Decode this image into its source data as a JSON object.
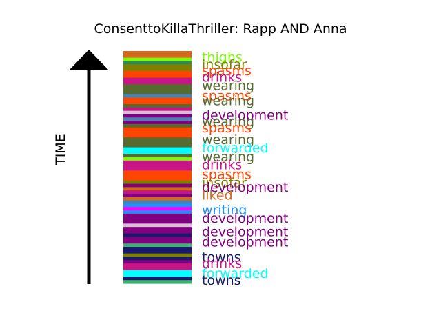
{
  "chart_data": {
    "type": "timeline-strip",
    "title": "ConsenttoKillaThriller: Rapp AND Anna",
    "ylabel": "TIME",
    "colors": {
      "thighs": "#7cfc00",
      "insofar": "#808000",
      "spasms": "#ff4500",
      "drinks": "#c71585",
      "wearing": "#556b2f",
      "development": "#800080",
      "forwarded": "#00ffff",
      "liked": "#d2691e",
      "writing": "#1e90ff",
      "towns": "#191970",
      "misc1": "#4682b4",
      "misc2": "#2e8b57",
      "misc3": "#3cb371",
      "misc4": "#ff00ff",
      "misc5": "#d8bfd8"
    },
    "bands": [
      "liked",
      "liked",
      "thighs",
      "misc2",
      "insofar",
      "insofar",
      "spasms",
      "spasms",
      "drinks",
      "drinks",
      "wearing",
      "wearing",
      "wearing",
      "misc1",
      "spasms",
      "spasms",
      "wearing",
      "drinks",
      "misc5",
      "development",
      "misc1",
      "development",
      "wearing",
      "spasms",
      "spasms",
      "spasms",
      "wearing",
      "wearing",
      "wearing",
      "forwarded",
      "forwarded",
      "wearing",
      "thighs",
      "drinks",
      "drinks",
      "drinks",
      "spasms",
      "spasms",
      "spasms",
      "insofar",
      "development",
      "liked",
      "drinks",
      "development",
      "liked",
      "misc1",
      "writing",
      "misc4",
      "writing",
      "development",
      "development",
      "development",
      "misc5",
      "development",
      "development",
      "towns",
      "development",
      "development",
      "misc3",
      "towns",
      "towns",
      "insofar",
      "towns",
      "development",
      "drinks",
      "drinks",
      "forwarded",
      "forwarded",
      "towns",
      "misc3"
    ],
    "labels": [
      {
        "text": "thighs",
        "key": "thighs",
        "pos": 0.025
      },
      {
        "text": "insofar",
        "key": "insofar",
        "pos": 0.057
      },
      {
        "text": "spasms",
        "key": "spasms",
        "pos": 0.083
      },
      {
        "text": "drinks",
        "key": "drinks",
        "pos": 0.112
      },
      {
        "text": "wearing",
        "key": "wearing",
        "pos": 0.147
      },
      {
        "text": "spasms",
        "key": "spasms",
        "pos": 0.191
      },
      {
        "text": "wearing",
        "key": "wearing",
        "pos": 0.212
      },
      {
        "text": "development",
        "key": "development",
        "pos": 0.274
      },
      {
        "text": "wearing",
        "key": "wearing",
        "pos": 0.302
      },
      {
        "text": "spasms",
        "key": "spasms",
        "pos": 0.33
      },
      {
        "text": "wearing",
        "key": "wearing",
        "pos": 0.38
      },
      {
        "text": "forwarded",
        "key": "forwarded",
        "pos": 0.415
      },
      {
        "text": "wearing",
        "key": "wearing",
        "pos": 0.454
      },
      {
        "text": "drinks",
        "key": "drinks",
        "pos": 0.488
      },
      {
        "text": "spasms",
        "key": "spasms",
        "pos": 0.53
      },
      {
        "text": "insofar",
        "key": "insofar",
        "pos": 0.566
      },
      {
        "text": "development",
        "key": "development",
        "pos": 0.584
      },
      {
        "text": "liked",
        "key": "liked",
        "pos": 0.619
      },
      {
        "text": "writing",
        "key": "writing",
        "pos": 0.683
      },
      {
        "text": "development",
        "key": "development",
        "pos": 0.718
      },
      {
        "text": "development",
        "key": "development",
        "pos": 0.776
      },
      {
        "text": "development",
        "key": "development",
        "pos": 0.821
      },
      {
        "text": "towns",
        "key": "towns",
        "pos": 0.885
      },
      {
        "text": "drinks",
        "key": "drinks",
        "pos": 0.913
      },
      {
        "text": "forwarded",
        "key": "forwarded",
        "pos": 0.955
      },
      {
        "text": "towns",
        "key": "towns",
        "pos": 0.985
      }
    ]
  }
}
